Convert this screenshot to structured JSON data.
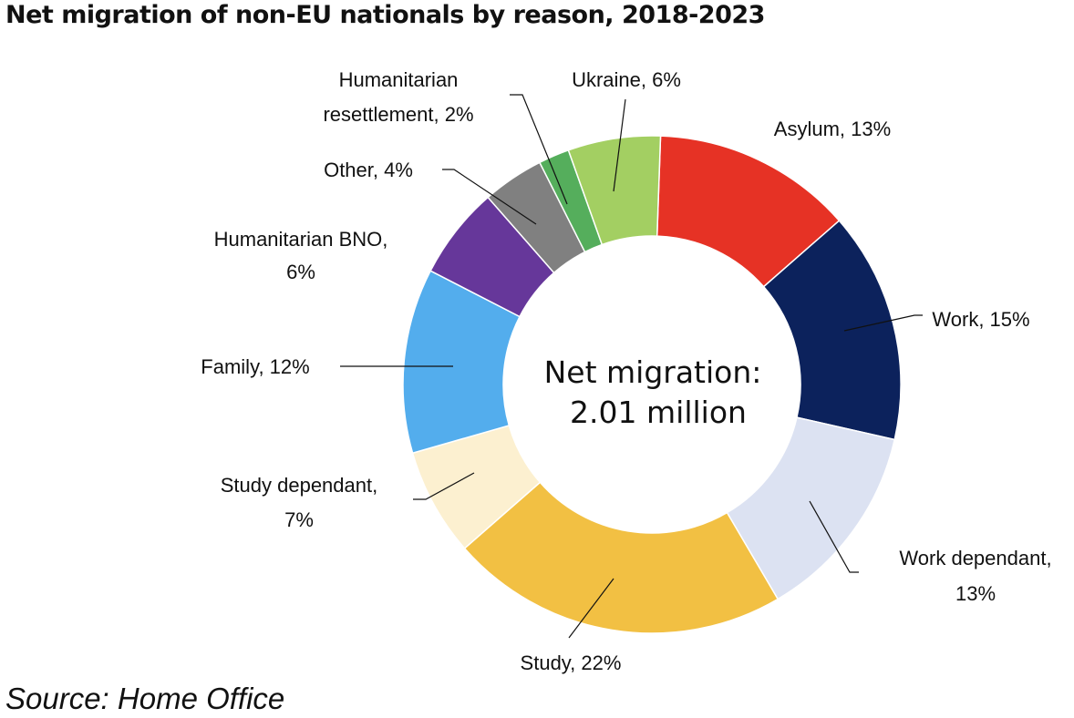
{
  "title": "Net migration of non-EU nationals by reason, 2018-2023",
  "source": "Source: Home Office",
  "chart_data": {
    "type": "pie",
    "donut": true,
    "title": "Net migration of non-EU nationals by reason, 2018-2023",
    "center_label": [
      "Net migration:",
      "2.01 million"
    ],
    "unit": "%",
    "slices": [
      {
        "name": "Asylum",
        "value": 13,
        "color": "#e63225",
        "label_lines": [
          "Asylum, 13%"
        ]
      },
      {
        "name": "Work",
        "value": 15,
        "color": "#0c225c",
        "label_lines": [
          "Work, 15%"
        ]
      },
      {
        "name": "Work dependant",
        "value": 13,
        "color": "#dce2f2",
        "label_lines": [
          "Work dependant,",
          "13%"
        ]
      },
      {
        "name": "Study",
        "value": 22,
        "color": "#f2c043",
        "label_lines": [
          "Study, 22%"
        ]
      },
      {
        "name": "Study dependant",
        "value": 7,
        "color": "#fcf0d0",
        "label_lines": [
          "Study dependant,",
          "7%"
        ]
      },
      {
        "name": "Family",
        "value": 12,
        "color": "#53aded",
        "label_lines": [
          "Family, 12%"
        ]
      },
      {
        "name": "Humanitarian BNO",
        "value": 6,
        "color": "#66379a",
        "label_lines": [
          "Humanitarian BNO,",
          "6%"
        ]
      },
      {
        "name": "Other",
        "value": 4,
        "color": "#808080",
        "label_lines": [
          "Other, 4%"
        ]
      },
      {
        "name": "Humanitarian resettlement",
        "value": 2,
        "color": "#55ae5c",
        "label_lines": [
          "Humanitarian",
          "resettlement, 2%"
        ]
      },
      {
        "name": "Ukraine",
        "value": 6,
        "color": "#a3cf62",
        "label_lines": [
          "Ukraine, 6%"
        ]
      }
    ]
  }
}
